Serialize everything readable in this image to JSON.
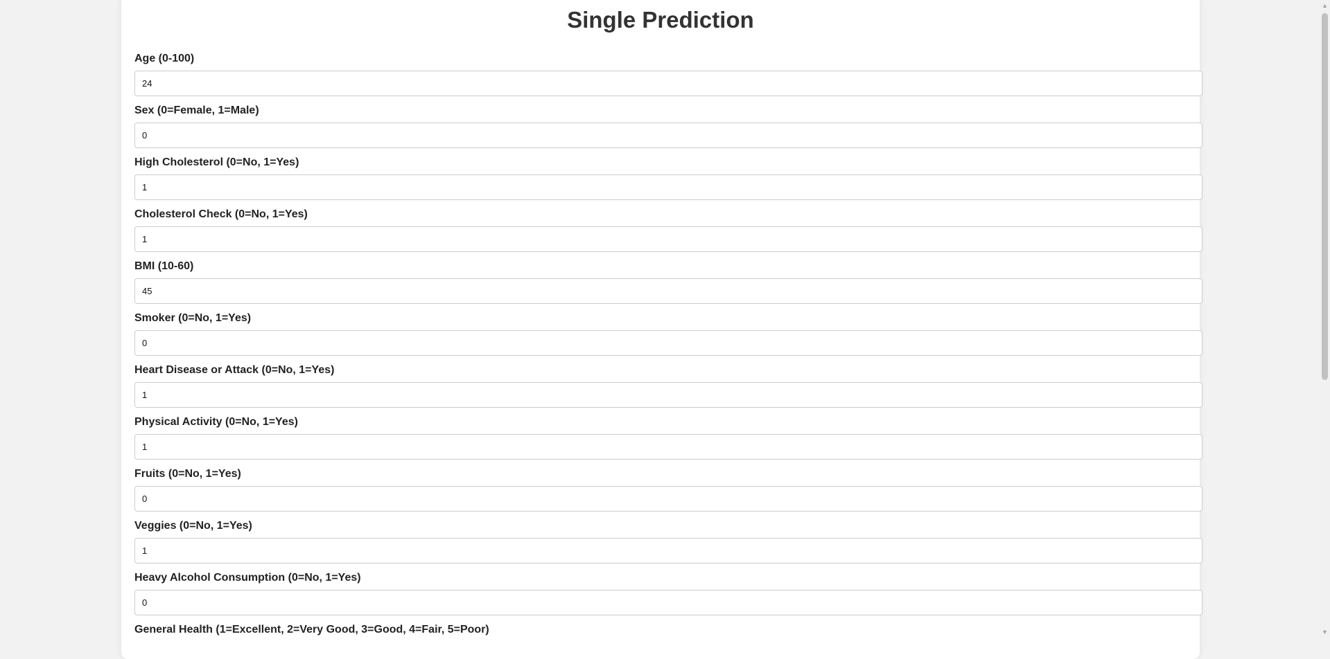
{
  "form": {
    "title": "Single Prediction",
    "fields": [
      {
        "label": "Age (0-100)",
        "value": "24"
      },
      {
        "label": "Sex (0=Female, 1=Male)",
        "value": "0"
      },
      {
        "label": "High Cholesterol (0=No, 1=Yes)",
        "value": "1"
      },
      {
        "label": "Cholesterol Check (0=No, 1=Yes)",
        "value": "1"
      },
      {
        "label": "BMI (10-60)",
        "value": "45"
      },
      {
        "label": "Smoker (0=No, 1=Yes)",
        "value": "0"
      },
      {
        "label": "Heart Disease or Attack (0=No, 1=Yes)",
        "value": "1"
      },
      {
        "label": "Physical Activity (0=No, 1=Yes)",
        "value": "1"
      },
      {
        "label": "Fruits (0=No, 1=Yes)",
        "value": "0"
      },
      {
        "label": "Veggies (0=No, 1=Yes)",
        "value": "1"
      },
      {
        "label": "Heavy Alcohol Consumption (0=No, 1=Yes)",
        "value": "0"
      },
      {
        "label": "General Health (1=Excellent, 2=Very Good, 3=Good, 4=Fair, 5=Poor)",
        "value": ""
      }
    ]
  },
  "scrollbar": {
    "up_icon": "triangle-up-icon",
    "down_icon": "triangle-down-icon"
  },
  "colors": {
    "page_background": "#f2f2f2",
    "card_background": "#ffffff",
    "title_text": "#333333",
    "input_border": "#cccccc"
  }
}
